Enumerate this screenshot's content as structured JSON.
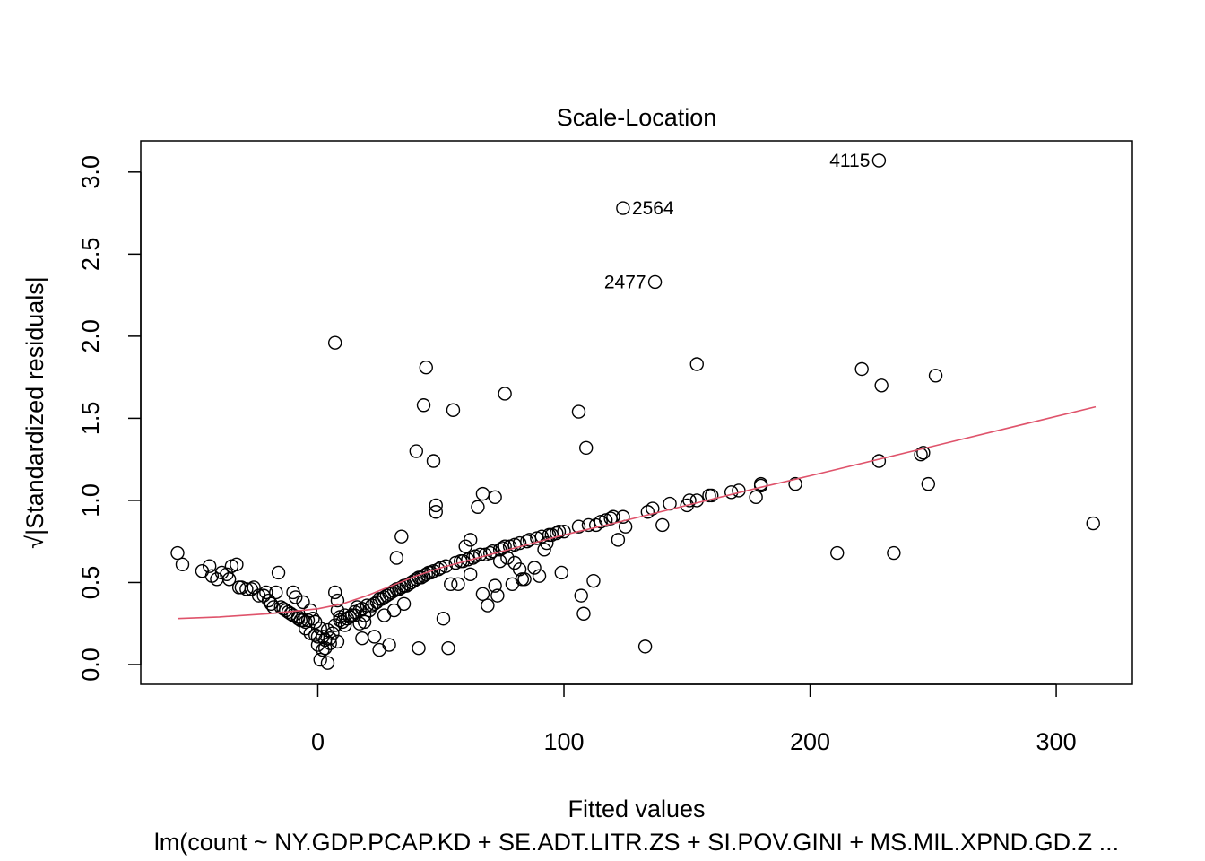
{
  "chart_data": {
    "type": "scatter",
    "title": "Scale-Location",
    "xlabel": "Fitted values",
    "ylabel": "√|Standardized residuals|",
    "subtitle": "lm(count ~ NY.GDP.PCAP.KD + SE.ADT.LITR.ZS + SI.POV.GINI + MS.MIL.XPND.GD.Z ...",
    "xlim": [
      -57,
      316
    ],
    "ylim": [
      0,
      3.07
    ],
    "xticks": [
      0,
      100,
      200,
      300
    ],
    "xtick_labels": [
      "0",
      "100",
      "200",
      "300"
    ],
    "yticks": [
      0.0,
      0.5,
      1.0,
      1.5,
      2.0,
      2.5,
      3.0
    ],
    "ytick_labels": [
      "0.0",
      "0.5",
      "1.0",
      "1.5",
      "2.0",
      "2.5",
      "3.0"
    ],
    "grid": false,
    "legend": "none",
    "point_color": "#000000",
    "smoother_color": "#DF536B",
    "labeled_points": [
      {
        "label": "4115",
        "x": 228,
        "y": 3.07,
        "side": "left"
      },
      {
        "label": "2564",
        "x": 124,
        "y": 2.78,
        "side": "right"
      },
      {
        "label": "2477",
        "x": 137,
        "y": 2.33,
        "side": "left"
      }
    ],
    "points": [
      [
        -57,
        0.68
      ],
      [
        -55,
        0.61
      ],
      [
        -47,
        0.57
      ],
      [
        -44,
        0.6
      ],
      [
        -43,
        0.54
      ],
      [
        -41,
        0.52
      ],
      [
        -39,
        0.56
      ],
      [
        -37,
        0.55
      ],
      [
        -36,
        0.52
      ],
      [
        -35,
        0.6
      ],
      [
        -33,
        0.61
      ],
      [
        -32,
        0.47
      ],
      [
        -31,
        0.47
      ],
      [
        -29,
        0.46
      ],
      [
        -27,
        0.46
      ],
      [
        -26,
        0.47
      ],
      [
        -24,
        0.42
      ],
      [
        -22,
        0.42
      ],
      [
        -21,
        0.44
      ],
      [
        -20,
        0.39
      ],
      [
        -19,
        0.37
      ],
      [
        -18,
        0.35
      ],
      [
        -17,
        0.44
      ],
      [
        -16,
        0.56
      ],
      [
        -15,
        0.35
      ],
      [
        -14,
        0.34
      ],
      [
        -13,
        0.33
      ],
      [
        -12,
        0.32
      ],
      [
        -11,
        0.31
      ],
      [
        -10,
        0.3
      ],
      [
        -10,
        0.44
      ],
      [
        -9,
        0.41
      ],
      [
        -8,
        0.29
      ],
      [
        -8,
        0.28
      ],
      [
        -7,
        0.27
      ],
      [
        -6,
        0.27
      ],
      [
        -6,
        0.38
      ],
      [
        -5,
        0.26
      ],
      [
        -5,
        0.22
      ],
      [
        -4,
        0.27
      ],
      [
        -3,
        0.33
      ],
      [
        -3,
        0.19
      ],
      [
        -2,
        0.28
      ],
      [
        -1,
        0.18
      ],
      [
        -1,
        0.26
      ],
      [
        0,
        0.12
      ],
      [
        0,
        0.17
      ],
      [
        1,
        0.22
      ],
      [
        1,
        0.03
      ],
      [
        2,
        0.17
      ],
      [
        2,
        0.09
      ],
      [
        3,
        0.1
      ],
      [
        3,
        0.15
      ],
      [
        4,
        0.01
      ],
      [
        4,
        0.21
      ],
      [
        5,
        0.16
      ],
      [
        5,
        0.13
      ],
      [
        6,
        0.19
      ],
      [
        7,
        1.96
      ],
      [
        7,
        0.44
      ],
      [
        7,
        0.24
      ],
      [
        8,
        0.14
      ],
      [
        8,
        0.33
      ],
      [
        8,
        0.39
      ],
      [
        9,
        0.29
      ],
      [
        9,
        0.27
      ],
      [
        10,
        0.26
      ],
      [
        11,
        0.24
      ],
      [
        11,
        0.3
      ],
      [
        12,
        0.28
      ],
      [
        13,
        0.29
      ],
      [
        14,
        0.3
      ],
      [
        15,
        0.3
      ],
      [
        15,
        0.32
      ],
      [
        16,
        0.35
      ],
      [
        17,
        0.25
      ],
      [
        17,
        0.33
      ],
      [
        18,
        0.16
      ],
      [
        18,
        0.34
      ],
      [
        19,
        0.3
      ],
      [
        19,
        0.26
      ],
      [
        20,
        0.36
      ],
      [
        21,
        0.33
      ],
      [
        22,
        0.36
      ],
      [
        23,
        0.17
      ],
      [
        23,
        0.37
      ],
      [
        24,
        0.38
      ],
      [
        25,
        0.09
      ],
      [
        25,
        0.4
      ],
      [
        26,
        0.4
      ],
      [
        27,
        0.41
      ],
      [
        27,
        0.3
      ],
      [
        28,
        0.42
      ],
      [
        29,
        0.12
      ],
      [
        29,
        0.43
      ],
      [
        30,
        0.44
      ],
      [
        31,
        0.45
      ],
      [
        31,
        0.33
      ],
      [
        32,
        0.65
      ],
      [
        32,
        0.46
      ],
      [
        33,
        0.46
      ],
      [
        34,
        0.47
      ],
      [
        34,
        0.78
      ],
      [
        35,
        0.48
      ],
      [
        35,
        0.37
      ],
      [
        36,
        0.48
      ],
      [
        37,
        0.49
      ],
      [
        38,
        0.5
      ],
      [
        39,
        0.51
      ],
      [
        40,
        1.3
      ],
      [
        40,
        0.52
      ],
      [
        41,
        0.53
      ],
      [
        41,
        0.1
      ],
      [
        42,
        0.53
      ],
      [
        43,
        0.54
      ],
      [
        43,
        1.58
      ],
      [
        44,
        1.81
      ],
      [
        44,
        0.55
      ],
      [
        45,
        0.56
      ],
      [
        46,
        0.56
      ],
      [
        47,
        1.24
      ],
      [
        47,
        0.57
      ],
      [
        48,
        0.97
      ],
      [
        48,
        0.93
      ],
      [
        49,
        0.58
      ],
      [
        50,
        0.59
      ],
      [
        51,
        0.28
      ],
      [
        52,
        0.6
      ],
      [
        53,
        0.1
      ],
      [
        54,
        0.49
      ],
      [
        55,
        1.55
      ],
      [
        56,
        0.62
      ],
      [
        57,
        0.49
      ],
      [
        58,
        0.63
      ],
      [
        59,
        0.63
      ],
      [
        60,
        0.72
      ],
      [
        61,
        0.64
      ],
      [
        62,
        0.76
      ],
      [
        62,
        0.55
      ],
      [
        63,
        0.65
      ],
      [
        64,
        0.66
      ],
      [
        65,
        0.96
      ],
      [
        66,
        0.67
      ],
      [
        67,
        1.04
      ],
      [
        67,
        0.43
      ],
      [
        68,
        0.67
      ],
      [
        69,
        0.36
      ],
      [
        70,
        0.68
      ],
      [
        71,
        0.69
      ],
      [
        72,
        1.02
      ],
      [
        72,
        0.48
      ],
      [
        73,
        0.42
      ],
      [
        74,
        0.7
      ],
      [
        74,
        0.63
      ],
      [
        75,
        0.71
      ],
      [
        76,
        1.65
      ],
      [
        76,
        0.72
      ],
      [
        77,
        0.65
      ],
      [
        78,
        0.72
      ],
      [
        79,
        0.49
      ],
      [
        80,
        0.73
      ],
      [
        80,
        0.62
      ],
      [
        82,
        0.74
      ],
      [
        82,
        0.58
      ],
      [
        83,
        0.52
      ],
      [
        84,
        0.52
      ],
      [
        85,
        0.75
      ],
      [
        86,
        0.76
      ],
      [
        88,
        0.59
      ],
      [
        89,
        0.77
      ],
      [
        90,
        0.54
      ],
      [
        91,
        0.78
      ],
      [
        92,
        0.7
      ],
      [
        93,
        0.74
      ],
      [
        94,
        0.79
      ],
      [
        95,
        0.79
      ],
      [
        97,
        0.8
      ],
      [
        98,
        0.81
      ],
      [
        99,
        0.56
      ],
      [
        100,
        0.81
      ],
      [
        106,
        0.84
      ],
      [
        106,
        1.54
      ],
      [
        107,
        0.42
      ],
      [
        108,
        0.31
      ],
      [
        109,
        1.32
      ],
      [
        110,
        0.85
      ],
      [
        112,
        0.51
      ],
      [
        113,
        0.85
      ],
      [
        115,
        0.87
      ],
      [
        117,
        0.88
      ],
      [
        119,
        0.89
      ],
      [
        120,
        0.9
      ],
      [
        122,
        0.76
      ],
      [
        124,
        0.9
      ],
      [
        125,
        0.84
      ],
      [
        133,
        0.11
      ],
      [
        134,
        0.93
      ],
      [
        136,
        0.95
      ],
      [
        140,
        0.85
      ],
      [
        143,
        0.98
      ],
      [
        150,
        0.97
      ],
      [
        151,
        1.0
      ],
      [
        154,
        1.0
      ],
      [
        154,
        1.83
      ],
      [
        159,
        1.03
      ],
      [
        160,
        1.03
      ],
      [
        168,
        1.05
      ],
      [
        171,
        1.06
      ],
      [
        178,
        1.02
      ],
      [
        180,
        1.09
      ],
      [
        180,
        1.1
      ],
      [
        194,
        1.1
      ],
      [
        211,
        0.68
      ],
      [
        221,
        1.8
      ],
      [
        228,
        1.24
      ],
      [
        229,
        1.7
      ],
      [
        234,
        0.68
      ],
      [
        245,
        1.28
      ],
      [
        246,
        1.29
      ],
      [
        248,
        1.1
      ],
      [
        251,
        1.76
      ],
      [
        315,
        0.86
      ]
    ],
    "smoother": [
      [
        -57,
        0.28
      ],
      [
        -40,
        0.29
      ],
      [
        -20,
        0.31
      ],
      [
        0,
        0.34
      ],
      [
        10,
        0.37
      ],
      [
        20,
        0.42
      ],
      [
        30,
        0.48
      ],
      [
        40,
        0.54
      ],
      [
        50,
        0.59
      ],
      [
        60,
        0.63
      ],
      [
        70,
        0.67
      ],
      [
        80,
        0.71
      ],
      [
        100,
        0.79
      ],
      [
        120,
        0.86
      ],
      [
        150,
        0.97
      ],
      [
        180,
        1.08
      ],
      [
        200,
        1.15
      ],
      [
        250,
        1.33
      ],
      [
        316,
        1.57
      ]
    ]
  }
}
